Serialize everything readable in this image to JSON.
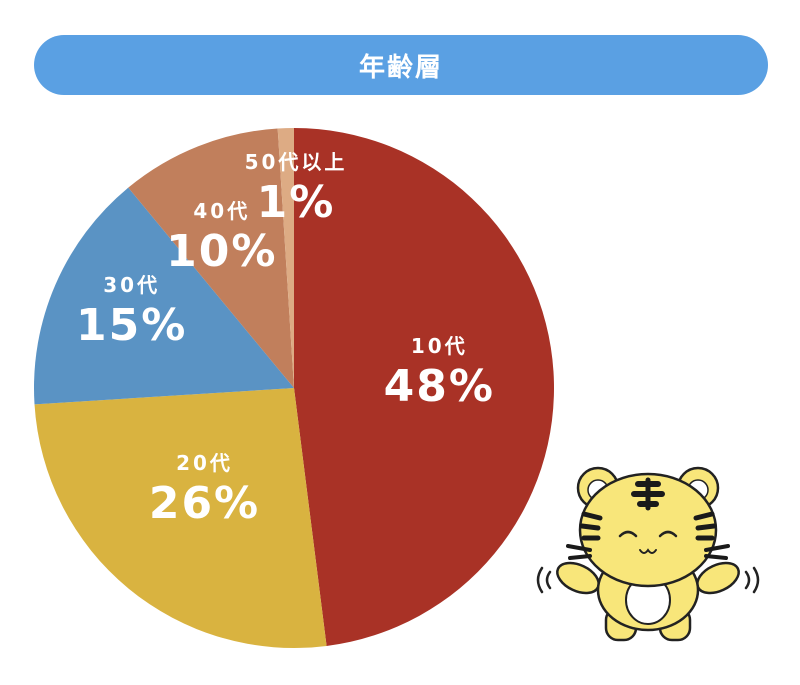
{
  "title": "年齢層",
  "chart_data": {
    "type": "pie",
    "title": "年齢層",
    "categories": [
      "10代",
      "20代",
      "30代",
      "40代",
      "50代以上"
    ],
    "values": [
      48,
      26,
      15,
      10,
      1
    ],
    "value_labels": [
      "48%",
      "26%",
      "15%",
      "10%",
      "1%"
    ],
    "unit": "%",
    "start_angle": "12 o'clock",
    "direction": "clockwise",
    "colors": [
      "#a93226",
      "#d9b340",
      "#5a93c4",
      "#c17f5c",
      "#ddab84"
    ],
    "legend": "none"
  },
  "mascot": {
    "icon": "tiger-mascot-icon",
    "body_color": "#f8e67a",
    "stripe_color": "#1a1a1a"
  }
}
